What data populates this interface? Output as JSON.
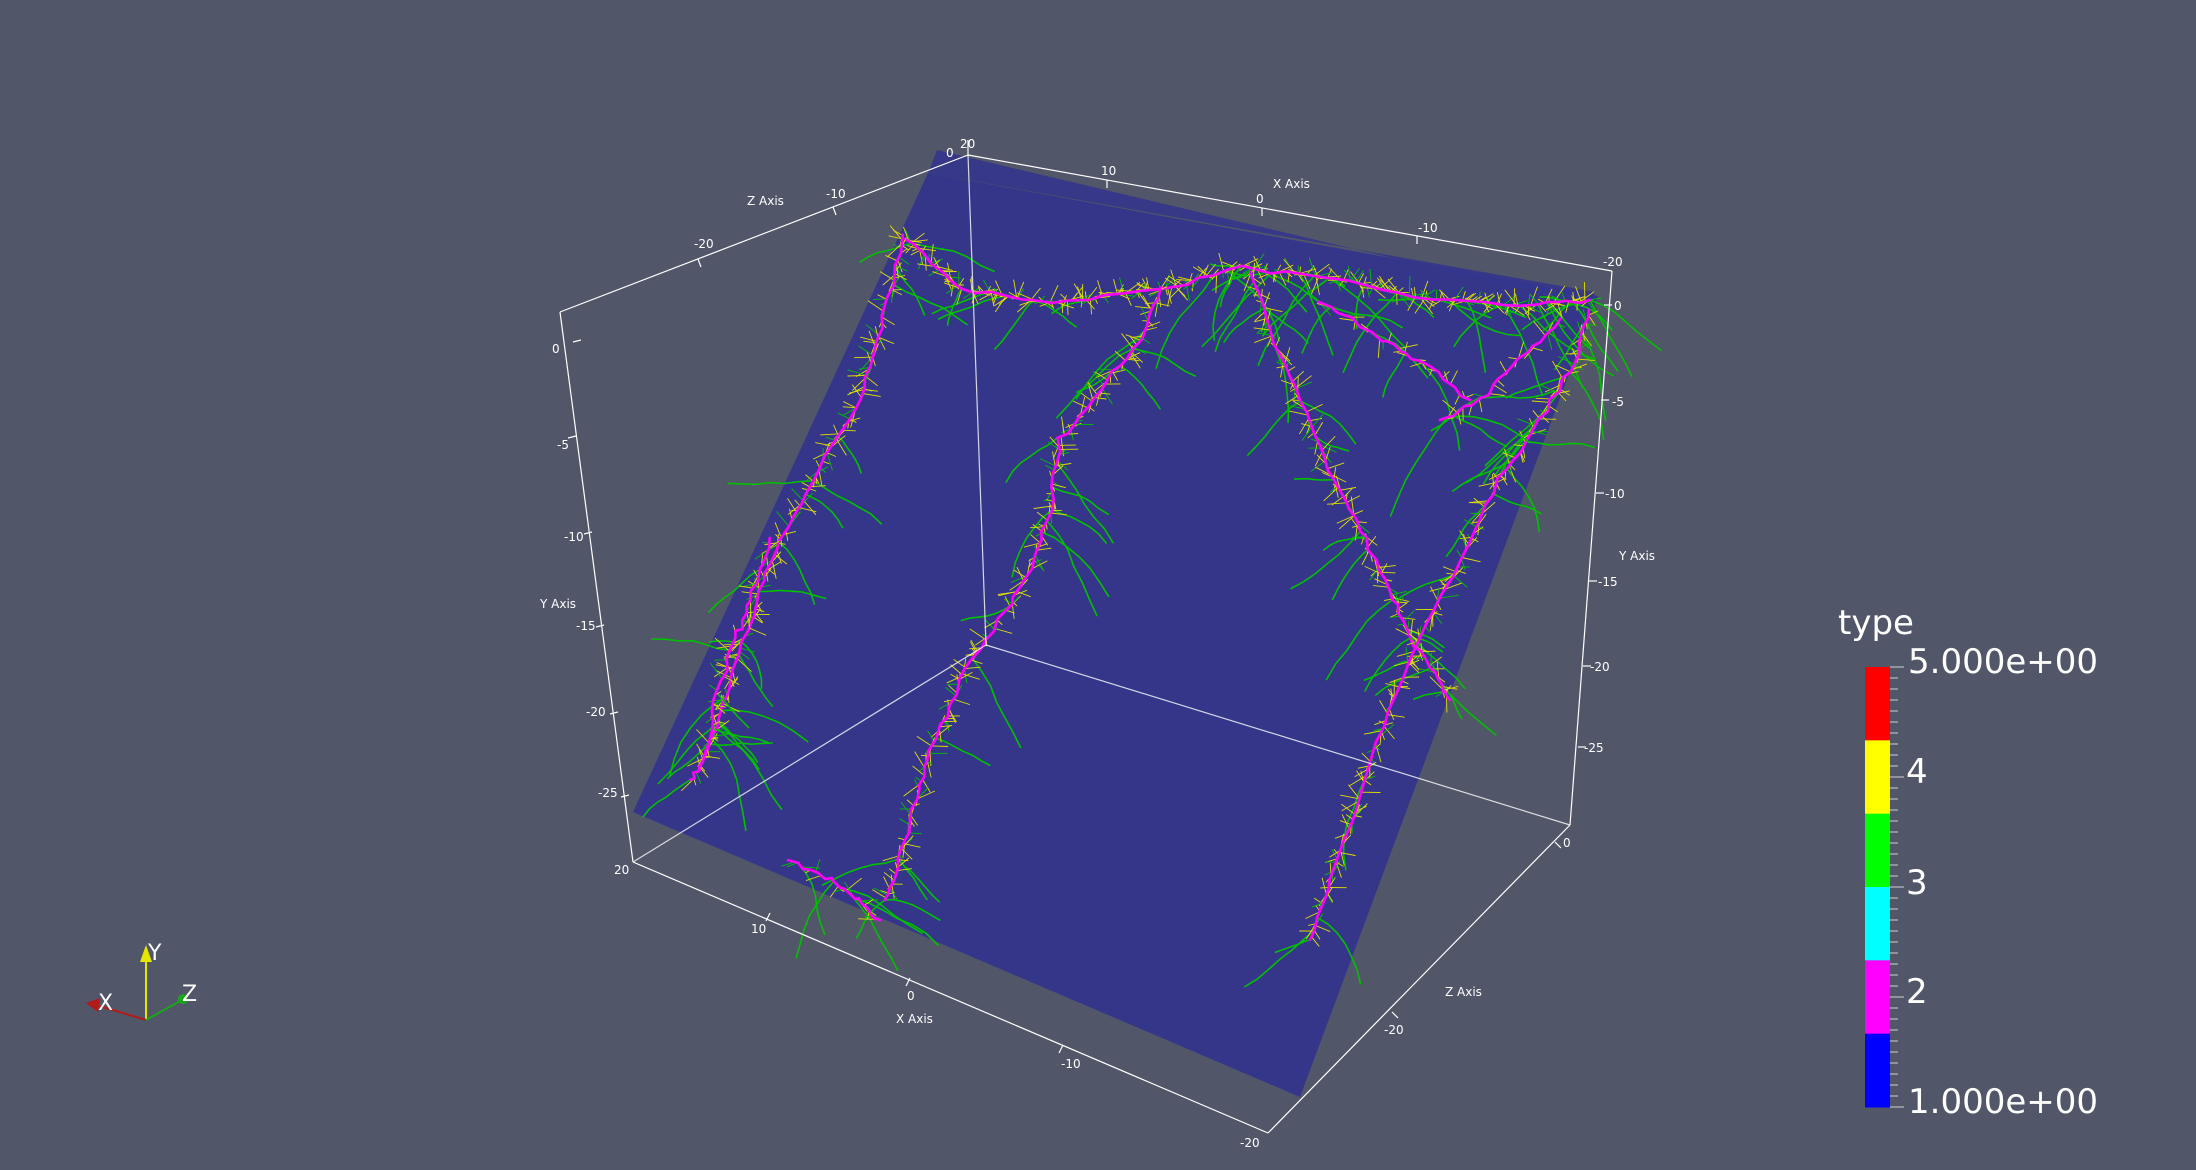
{
  "scene": {
    "background": "#525669",
    "volume_color": "#34358c",
    "axis_line_color": "#ffffff",
    "axes": {
      "x_title": "X Axis",
      "y_title": "Y Axis",
      "z_title": "Z Axis",
      "x_top_ticks": [
        "20",
        "10",
        "0",
        "-10",
        "-20"
      ],
      "x_bottom_ticks": [
        "20",
        "10",
        "0",
        "-10",
        "-20"
      ],
      "z_top_ticks": [
        "0",
        "-10",
        "-20"
      ],
      "z_right_ticks": [
        "0",
        "-20"
      ],
      "y_left_ticks": [
        "0",
        "-5",
        "-10",
        "-15",
        "-20",
        "-25"
      ],
      "y_right_ticks": [
        "0",
        "-5",
        "-10",
        "-15",
        "-20",
        "-25"
      ]
    }
  },
  "legend": {
    "title": "type",
    "max_label": "5.000e+00",
    "min_label": "1.000e+00",
    "labels": [
      "4",
      "3",
      "2"
    ],
    "colors": [
      "#ff0000",
      "#ffff00",
      "#00ff00",
      "#00ffff",
      "#ff00ff",
      "#0000ff"
    ]
  },
  "orientation": {
    "x_label": "X",
    "y_label": "Y",
    "z_label": "Z",
    "x_color": "#b31a1a",
    "y_color": "#e6e600",
    "z_color": "#1aa61a"
  },
  "root_colors": {
    "type2": "#ff00ff",
    "type3": "#00c000",
    "type4": "#e0e000"
  }
}
